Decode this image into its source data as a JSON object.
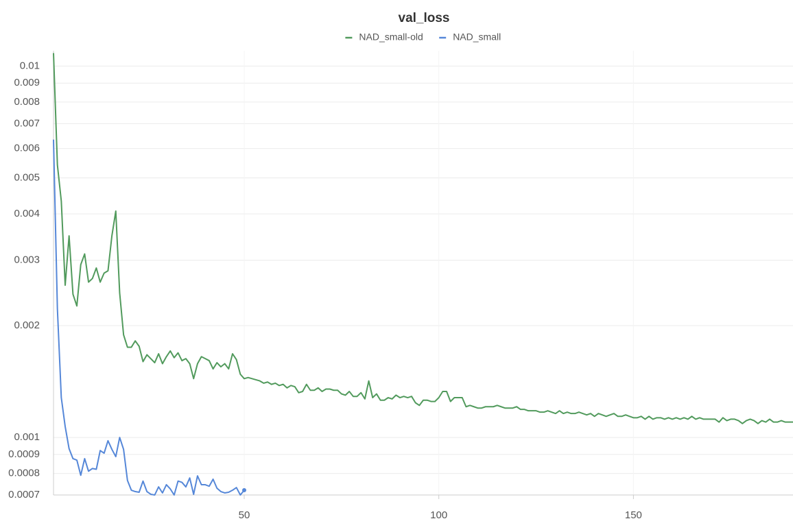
{
  "chart_data": {
    "type": "line",
    "title": "val_loss",
    "log_y": true,
    "grid": true,
    "legend": "top",
    "xlim": [
      1,
      191
    ],
    "ylim": [
      0.0007,
      0.011
    ],
    "xticks": [
      50,
      100,
      150
    ],
    "yticks": [
      0.0007,
      0.0008,
      0.0009,
      0.001,
      0.002,
      0.003,
      0.004,
      0.005,
      0.006,
      0.007,
      0.008,
      0.009,
      0.01
    ],
    "series": [
      {
        "name": "NAD_small-old",
        "color": "#519a5c",
        "x": [
          1,
          2,
          3,
          4,
          5,
          6,
          7,
          8,
          9,
          10,
          11,
          12,
          13,
          14,
          15,
          16,
          17,
          18,
          19,
          20,
          21,
          22,
          23,
          24,
          25,
          26,
          27,
          28,
          29,
          30,
          31,
          32,
          33,
          34,
          35,
          36,
          37,
          38,
          39,
          40,
          41,
          42,
          43,
          44,
          45,
          46,
          47,
          48,
          49,
          50,
          51,
          52,
          53,
          54,
          55,
          56,
          57,
          58,
          59,
          60,
          61,
          62,
          63,
          64,
          65,
          66,
          67,
          68,
          69,
          70,
          71,
          72,
          73,
          74,
          75,
          76,
          77,
          78,
          79,
          80,
          81,
          82,
          83,
          84,
          85,
          86,
          87,
          88,
          89,
          90,
          91,
          92,
          93,
          94,
          95,
          96,
          97,
          98,
          99,
          100,
          101,
          102,
          103,
          104,
          105,
          106,
          107,
          108,
          109,
          110,
          111,
          112,
          113,
          114,
          115,
          116,
          117,
          118,
          119,
          120,
          121,
          122,
          123,
          124,
          125,
          126,
          127,
          128,
          129,
          130,
          131,
          132,
          133,
          134,
          135,
          136,
          137,
          138,
          139,
          140,
          141,
          142,
          143,
          144,
          145,
          146,
          147,
          148,
          149,
          150,
          151,
          152,
          153,
          154,
          155,
          156,
          157,
          158,
          159,
          160,
          161,
          162,
          163,
          164,
          165,
          166,
          167,
          168,
          169,
          170,
          171,
          172,
          173,
          174,
          175,
          176,
          177,
          178,
          179,
          180,
          181,
          182,
          183,
          184,
          185,
          186,
          187,
          188,
          189,
          190,
          191
        ],
        "values": [
          0.01084,
          0.00542,
          0.00433,
          0.00257,
          0.00349,
          0.00243,
          0.00226,
          0.00292,
          0.00312,
          0.00262,
          0.00268,
          0.00286,
          0.00262,
          0.00277,
          0.00281,
          0.00349,
          0.00407,
          0.00245,
          0.00189,
          0.00175,
          0.00175,
          0.00182,
          0.00176,
          0.0016,
          0.00167,
          0.00163,
          0.00159,
          0.00168,
          0.00158,
          0.00165,
          0.00171,
          0.00164,
          0.00169,
          0.00161,
          0.00163,
          0.00158,
          0.00144,
          0.00158,
          0.00165,
          0.00163,
          0.00161,
          0.00153,
          0.00159,
          0.00155,
          0.00158,
          0.00153,
          0.00168,
          0.00162,
          0.00148,
          0.00144,
          0.00145,
          0.00144,
          0.00143,
          0.00142,
          0.0014,
          0.00141,
          0.00139,
          0.0014,
          0.00138,
          0.00139,
          0.00136,
          0.00138,
          0.00137,
          0.00132,
          0.00133,
          0.00139,
          0.00134,
          0.00134,
          0.00136,
          0.00133,
          0.00135,
          0.00135,
          0.00134,
          0.00134,
          0.00131,
          0.0013,
          0.00133,
          0.00129,
          0.00129,
          0.00132,
          0.00127,
          0.00142,
          0.00128,
          0.00131,
          0.00126,
          0.00126,
          0.00128,
          0.00127,
          0.0013,
          0.00128,
          0.00129,
          0.00128,
          0.00129,
          0.00124,
          0.00122,
          0.00126,
          0.00126,
          0.00125,
          0.00125,
          0.00128,
          0.00133,
          0.00133,
          0.00125,
          0.00128,
          0.00128,
          0.00128,
          0.00121,
          0.00122,
          0.00121,
          0.0012,
          0.0012,
          0.00121,
          0.00121,
          0.00121,
          0.00122,
          0.00121,
          0.0012,
          0.0012,
          0.0012,
          0.00121,
          0.00119,
          0.00119,
          0.00118,
          0.00118,
          0.00118,
          0.00117,
          0.00117,
          0.00118,
          0.00117,
          0.00116,
          0.00118,
          0.00116,
          0.00117,
          0.00116,
          0.00116,
          0.00117,
          0.00116,
          0.00115,
          0.00116,
          0.00114,
          0.00116,
          0.00115,
          0.00114,
          0.00115,
          0.00116,
          0.00114,
          0.00114,
          0.00115,
          0.00114,
          0.00113,
          0.00113,
          0.00114,
          0.00112,
          0.00114,
          0.00112,
          0.00113,
          0.00113,
          0.00112,
          0.00113,
          0.00112,
          0.00113,
          0.00112,
          0.00113,
          0.00112,
          0.00114,
          0.00112,
          0.00113,
          0.00112,
          0.00112,
          0.00112,
          0.00112,
          0.0011,
          0.00113,
          0.00111,
          0.00112,
          0.00112,
          0.00111,
          0.00109,
          0.00111,
          0.00112,
          0.00111,
          0.00109,
          0.00111,
          0.0011,
          0.00112,
          0.0011,
          0.0011,
          0.00111,
          0.0011,
          0.0011,
          0.0011
        ]
      },
      {
        "name": "NAD_small",
        "color": "#5587d8",
        "x": [
          1,
          2,
          3,
          4,
          5,
          6,
          7,
          8,
          9,
          10,
          11,
          12,
          13,
          14,
          15,
          16,
          17,
          18,
          19,
          20,
          21,
          22,
          23,
          24,
          25,
          26,
          27,
          28,
          29,
          30,
          31,
          32,
          33,
          34,
          35,
          36,
          37,
          38,
          39,
          40,
          41,
          42,
          43,
          44,
          45,
          46,
          47,
          48,
          49,
          50
        ],
        "values": [
          0.00634,
          0.00222,
          0.00128,
          0.00107,
          0.000933,
          0.000877,
          0.000869,
          0.000791,
          0.000877,
          0.000811,
          0.000825,
          0.000821,
          0.000922,
          0.000907,
          0.00098,
          0.000929,
          0.000888,
          0.001,
          0.000929,
          0.000766,
          0.000721,
          0.000715,
          0.000712,
          0.000763,
          0.000715,
          0.000703,
          0.0007,
          0.000736,
          0.000709,
          0.000746,
          0.000727,
          0.0007,
          0.000763,
          0.000757,
          0.000736,
          0.000778,
          0.000703,
          0.000788,
          0.000746,
          0.000746,
          0.000739,
          0.000772,
          0.00073,
          0.000715,
          0.000709,
          0.000712,
          0.000721,
          0.000733,
          0.0007,
          0.000721
        ]
      }
    ]
  }
}
